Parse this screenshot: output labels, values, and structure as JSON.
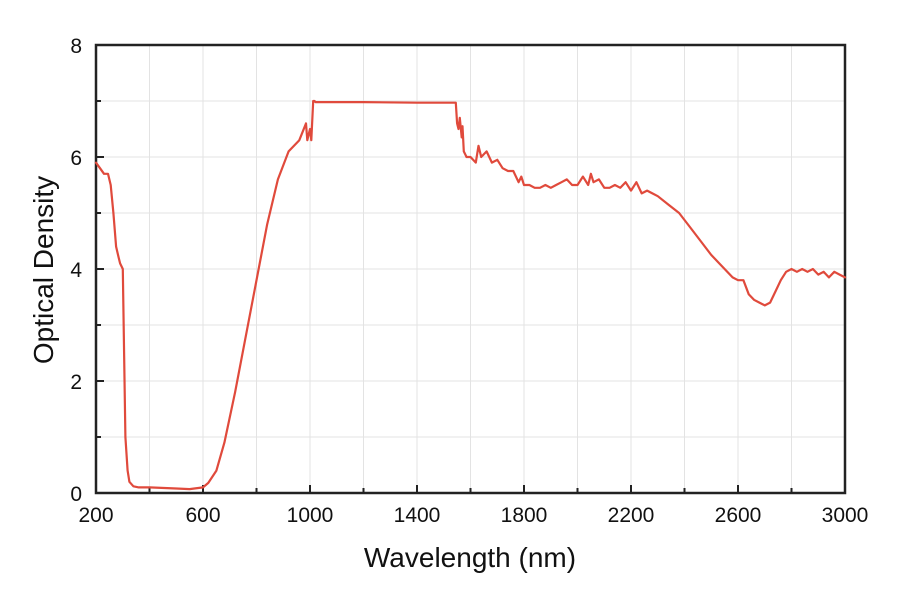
{
  "chart_data": {
    "type": "line",
    "xlabel": "Wavelength (nm)",
    "ylabel": "Optical Density",
    "xlim": [
      200,
      3000
    ],
    "ylim": [
      0,
      8
    ],
    "x_ticks": [
      200,
      600,
      1000,
      1400,
      1800,
      2200,
      2600,
      3000
    ],
    "x_tick_labels": [
      "200",
      "600",
      "1000",
      "1400",
      "1800",
      "2200",
      "2600",
      "3000"
    ],
    "y_ticks": [
      0,
      2,
      4,
      6,
      8
    ],
    "y_tick_labels": [
      "0",
      "2",
      "4",
      "6",
      "8"
    ],
    "grid": true,
    "legend": "none",
    "line_color": "#e04a3c",
    "series": [
      {
        "x": [
          200,
          215,
          230,
          245,
          255,
          265,
          275,
          285,
          290,
          300,
          305,
          310,
          318,
          325,
          340,
          360,
          400,
          500,
          550,
          600,
          620,
          650,
          680,
          720,
          760,
          800,
          840,
          880,
          920,
          960,
          985,
          990,
          1000,
          1005,
          1012,
          1017,
          1020,
          1200,
          1400,
          1545,
          1550,
          1555,
          1560,
          1567,
          1570,
          1575,
          1580,
          1585,
          1600,
          1620,
          1630,
          1640,
          1660,
          1680,
          1700,
          1720,
          1740,
          1760,
          1780,
          1790,
          1800,
          1820,
          1840,
          1860,
          1880,
          1900,
          1920,
          1940,
          1960,
          1980,
          2000,
          2020,
          2040,
          2050,
          2060,
          2080,
          2100,
          2120,
          2140,
          2160,
          2180,
          2200,
          2220,
          2240,
          2260,
          2280,
          2300,
          2340,
          2380,
          2420,
          2460,
          2500,
          2540,
          2580,
          2600,
          2620,
          2640,
          2660,
          2680,
          2700,
          2720,
          2740,
          2760,
          2780,
          2800,
          2820,
          2840,
          2860,
          2880,
          2900,
          2920,
          2940,
          2960,
          2980,
          3000
        ],
        "y": [
          5.9,
          5.8,
          5.7,
          5.7,
          5.5,
          5.0,
          4.4,
          4.2,
          4.1,
          4.0,
          2.5,
          1.0,
          0.4,
          0.2,
          0.12,
          0.1,
          0.1,
          0.08,
          0.07,
          0.1,
          0.18,
          0.4,
          0.9,
          1.8,
          2.8,
          3.8,
          4.8,
          5.6,
          6.1,
          6.3,
          6.6,
          6.3,
          6.5,
          6.3,
          7.0,
          7.0,
          6.98,
          6.98,
          6.97,
          6.97,
          6.6,
          6.5,
          6.7,
          6.35,
          6.55,
          6.1,
          6.05,
          6.0,
          6.0,
          5.9,
          6.2,
          6.0,
          6.1,
          5.9,
          5.95,
          5.8,
          5.75,
          5.75,
          5.55,
          5.65,
          5.5,
          5.5,
          5.45,
          5.45,
          5.5,
          5.45,
          5.5,
          5.55,
          5.6,
          5.5,
          5.5,
          5.65,
          5.5,
          5.7,
          5.55,
          5.6,
          5.45,
          5.45,
          5.5,
          5.45,
          5.55,
          5.4,
          5.55,
          5.35,
          5.4,
          5.35,
          5.3,
          5.15,
          5.0,
          4.75,
          4.5,
          4.25,
          4.05,
          3.85,
          3.8,
          3.8,
          3.55,
          3.45,
          3.4,
          3.35,
          3.4,
          3.6,
          3.8,
          3.95,
          4.0,
          3.95,
          4.0,
          3.95,
          4.0,
          3.9,
          3.95,
          3.85,
          3.95,
          3.9,
          3.85
        ]
      }
    ]
  }
}
